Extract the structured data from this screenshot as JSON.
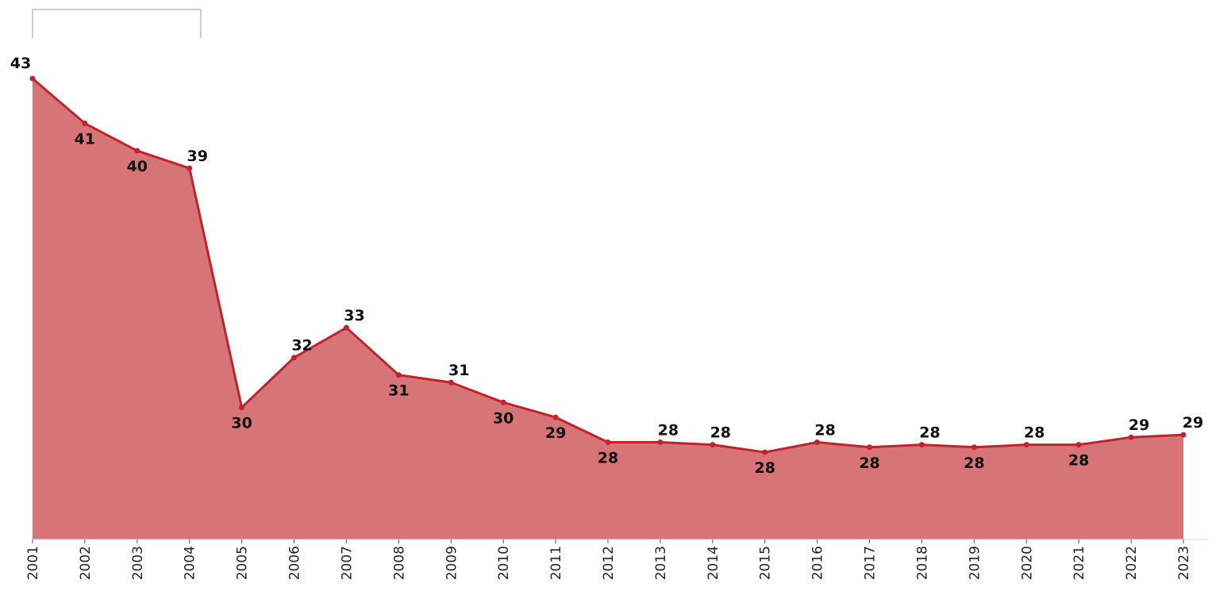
{
  "chart_data": {
    "type": "area",
    "categories": [
      "2001",
      "2002",
      "2003",
      "2004",
      "2005",
      "2006",
      "2007",
      "2008",
      "2009",
      "2010",
      "2011",
      "2012",
      "2013",
      "2014",
      "2015",
      "2016",
      "2017",
      "2018",
      "2019",
      "2020",
      "2021",
      "2022",
      "2023"
    ],
    "series": [
      {
        "color": "#c0232b",
        "values": [
          43.0,
          41.2,
          40.1,
          39.4,
          29.8,
          31.8,
          33.0,
          31.1,
          30.8,
          30.0,
          29.4,
          28.4,
          28.4,
          28.3,
          28.0,
          28.4,
          28.2,
          28.3,
          28.2,
          28.3,
          28.3,
          28.6,
          28.7
        ],
        "value_labels": [
          "43",
          "41",
          "40",
          "39",
          "30",
          "32",
          "33",
          "31",
          "31",
          "30",
          "29",
          "28",
          "28",
          "28",
          "28",
          "28",
          "28",
          "28",
          "28",
          "28",
          "28",
          "29",
          "29"
        ]
      }
    ],
    "fill_color": "#d67477",
    "ylim": [
      24.5,
      43
    ]
  }
}
